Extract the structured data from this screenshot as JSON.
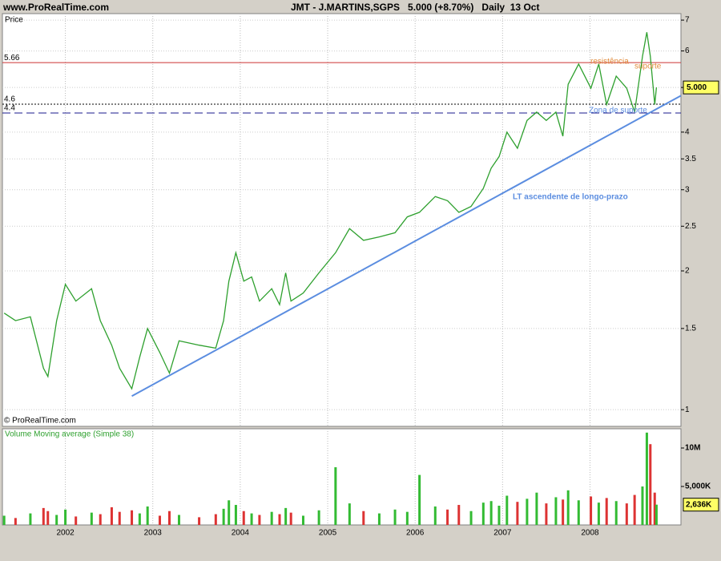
{
  "header": {
    "site": "www.ProRealTime.com",
    "title": "JMT - J.MARTINS,SGPS   5.000 (+8.70%)   Daily  13 Oct"
  },
  "chart_data": [
    {
      "type": "line",
      "y_label": "Price",
      "watermark": "© ProRealTime.com",
      "log_scale": true,
      "grid": true,
      "xlim": [
        2001.28,
        2009.04
      ],
      "ylim": [
        0.92,
        7.23
      ],
      "yticks": [
        1,
        1.5,
        2,
        2.5,
        3,
        3.5,
        4,
        5,
        6,
        7
      ],
      "series": [
        {
          "color": "#2ea02e",
          "x": [
            2001.3,
            2001.43,
            2001.6,
            2001.75,
            2001.8,
            2001.9,
            2002.0,
            2002.12,
            2002.3,
            2002.4,
            2002.53,
            2002.62,
            2002.76,
            2002.85,
            2002.94,
            2003.08,
            2003.19,
            2003.3,
            2003.53,
            2003.72,
            2003.81,
            2003.87,
            2003.95,
            2004.04,
            2004.13,
            2004.22,
            2004.36,
            2004.45,
            2004.52,
            2004.58,
            2004.72,
            2004.9,
            2005.09,
            2005.25,
            2005.41,
            2005.59,
            2005.77,
            2005.91,
            2006.05,
            2006.23,
            2006.37,
            2006.5,
            2006.64,
            2006.78,
            2006.87,
            2006.96,
            2007.05,
            2007.17,
            2007.28,
            2007.39,
            2007.5,
            2007.61,
            2007.69,
            2007.75,
            2007.87,
            2008.01,
            2008.1,
            2008.19,
            2008.3,
            2008.42,
            2008.51,
            2008.6,
            2008.65,
            2008.69,
            2008.74,
            2008.76
          ],
          "values": [
            1.62,
            1.56,
            1.59,
            1.23,
            1.18,
            1.56,
            1.87,
            1.72,
            1.83,
            1.56,
            1.38,
            1.23,
            1.11,
            1.3,
            1.5,
            1.33,
            1.2,
            1.41,
            1.38,
            1.36,
            1.56,
            1.9,
            2.19,
            1.9,
            1.94,
            1.72,
            1.83,
            1.69,
            1.98,
            1.72,
            1.79,
            1.98,
            2.19,
            2.47,
            2.33,
            2.37,
            2.42,
            2.62,
            2.68,
            2.9,
            2.84,
            2.68,
            2.76,
            3.02,
            3.34,
            3.54,
            4.0,
            3.69,
            4.24,
            4.42,
            4.24,
            4.42,
            3.92,
            5.08,
            5.62,
            4.98,
            5.62,
            4.59,
            5.29,
            4.98,
            4.42,
            5.84,
            6.59,
            5.84,
            4.59,
            5.0
          ]
        }
      ],
      "levels": [
        {
          "value": 5.66,
          "label": "5.66",
          "color": "#cc3333",
          "style": "solid"
        },
        {
          "value": 4.6,
          "label": "4.6",
          "color": "#000000",
          "style": "dotted"
        },
        {
          "value": 4.4,
          "label": "4.4",
          "color": "#1a1a8c",
          "style": "dashed"
        }
      ],
      "trend_line": {
        "color": "#5b8de0",
        "x": [
          2002.76,
          2009.04
        ],
        "values": [
          1.07,
          4.8
        ]
      },
      "last_price": {
        "value": 5.0,
        "label": "5.000"
      },
      "annotations": [
        "LT ascendente de longo-prazo",
        "resistência",
        "suporte",
        "Zona de suporte"
      ]
    },
    {
      "type": "bar",
      "title": "Volume Moving average (Simple 38)",
      "up_color": "#33bb33",
      "down_color": "#dd3333",
      "xlim": [
        2001.28,
        2009.04
      ],
      "xticks": [
        2002,
        2003,
        2004,
        2005,
        2006,
        2007,
        2008
      ],
      "ylim": [
        0,
        12500000
      ],
      "yticks": [
        {
          "value": 10000000,
          "label": "10M"
        },
        {
          "value": 5000000,
          "label": "5,000K"
        }
      ],
      "x": [
        2001.3,
        2001.43,
        2001.6,
        2001.75,
        2001.8,
        2001.9,
        2002.0,
        2002.12,
        2002.3,
        2002.4,
        2002.53,
        2002.62,
        2002.76,
        2002.85,
        2002.94,
        2003.08,
        2003.19,
        2003.3,
        2003.53,
        2003.72,
        2003.81,
        2003.87,
        2003.95,
        2004.04,
        2004.13,
        2004.22,
        2004.36,
        2004.45,
        2004.52,
        2004.58,
        2004.72,
        2004.9,
        2005.09,
        2005.25,
        2005.41,
        2005.59,
        2005.77,
        2005.91,
        2006.05,
        2006.23,
        2006.37,
        2006.5,
        2006.64,
        2006.78,
        2006.87,
        2006.96,
        2007.05,
        2007.17,
        2007.28,
        2007.39,
        2007.5,
        2007.61,
        2007.69,
        2007.75,
        2007.87,
        2008.01,
        2008.1,
        2008.19,
        2008.3,
        2008.42,
        2008.51,
        2008.6,
        2008.65,
        2008.69,
        2008.74,
        2008.76
      ],
      "values": [
        1200000,
        900000,
        1500000,
        2200000,
        1800000,
        1300000,
        2000000,
        1100000,
        1600000,
        1400000,
        2300000,
        1700000,
        1900000,
        1500000,
        2400000,
        1200000,
        1800000,
        1300000,
        1000000,
        1400000,
        2100000,
        3200000,
        2600000,
        1800000,
        1500000,
        1300000,
        1700000,
        1400000,
        2200000,
        1600000,
        1200000,
        1900000,
        7500000,
        2800000,
        1800000,
        1500000,
        2000000,
        1700000,
        6500000,
        2400000,
        2000000,
        2600000,
        1800000,
        2900000,
        3100000,
        2500000,
        3800000,
        3000000,
        3400000,
        4200000,
        2800000,
        3600000,
        3300000,
        4500000,
        3200000,
        3700000,
        2900000,
        3500000,
        3100000,
        2800000,
        3900000,
        5000000,
        12000000,
        10500000,
        4200000,
        2636000
      ],
      "last_volume": {
        "value": 2636000,
        "label": "2,636K"
      }
    }
  ]
}
